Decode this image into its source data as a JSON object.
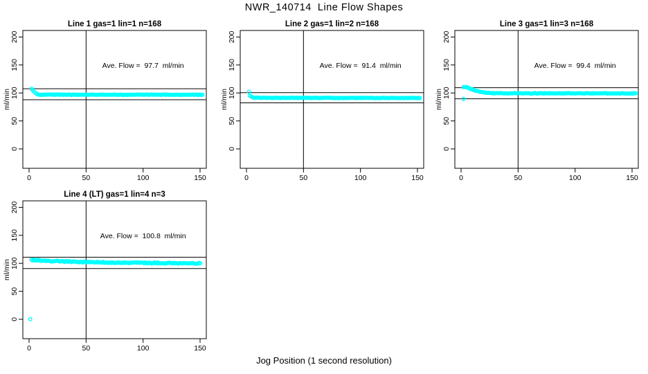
{
  "figure_title": "NWR_140714  Line Flow Shapes",
  "x_axis_label": "Jog Position (1 second resolution)",
  "colors": {
    "marker": "#00FFFF",
    "axis": "#000000",
    "background": "#FFFFFF",
    "text": "#000000"
  },
  "chart_data": {
    "type": "scatter",
    "title": "NWR_140714  Line Flow Shapes",
    "xlabel": "Jog Position (1 second resolution)",
    "ylabel": "ml/min",
    "xticks": [
      0,
      50,
      100,
      150
    ],
    "yticks": [
      0,
      50,
      100,
      150,
      200
    ],
    "xlim": [
      -6,
      156
    ],
    "ylim": [
      -34,
      210
    ],
    "grid": false,
    "legend": "none",
    "marker": "open-circle",
    "annotation_position": {
      "x": 100,
      "y": 150
    },
    "panels": [
      {
        "title": "Line 1 gas=1 lin=1 n=168",
        "annotation": "Ave. Flow =  97.7  ml/min",
        "ave_flow_ml_min": 97.7,
        "gas": 1,
        "lin": 1,
        "n": 168,
        "vline_x": 50,
        "ref_lines": [
          107.5,
          87.9
        ],
        "x_range": [
          2,
          152
        ],
        "trend_keypoints": [
          [
            2,
            107.2
          ],
          [
            3,
            105.8
          ],
          [
            4,
            103.2
          ],
          [
            5,
            101.0
          ],
          [
            6,
            99.4
          ],
          [
            7,
            98.2
          ],
          [
            8,
            97.4
          ],
          [
            9,
            97.0
          ],
          [
            10,
            96.9
          ],
          [
            20,
            96.9
          ],
          [
            152,
            96.8
          ]
        ],
        "jitter": 0.45,
        "extra_points": []
      },
      {
        "title": "Line 2 gas=1 lin=2 n=168",
        "annotation": "Ave. Flow =  91.4  ml/min",
        "ave_flow_ml_min": 91.4,
        "gas": 1,
        "lin": 2,
        "n": 168,
        "vline_x": 50,
        "ref_lines": [
          100.5,
          82.3
        ],
        "x_range": [
          3,
          152
        ],
        "trend_keypoints": [
          [
            3,
            95.2
          ],
          [
            4,
            93.6
          ],
          [
            5,
            92.6
          ],
          [
            6,
            92.0
          ],
          [
            7,
            91.7
          ],
          [
            8,
            91.5
          ],
          [
            10,
            91.3
          ],
          [
            20,
            91.2
          ],
          [
            152,
            91.0
          ]
        ],
        "jitter": 0.4,
        "extra_points": [
          [
            2,
            102
          ]
        ]
      },
      {
        "title": "Line 3 gas=1 lin=3 n=168",
        "annotation": "Ave. Flow =  99.4  ml/min",
        "ave_flow_ml_min": 99.4,
        "gas": 1,
        "lin": 3,
        "n": 168,
        "vline_x": 50,
        "ref_lines": [
          109.3,
          89.5
        ],
        "x_range": [
          2,
          153
        ],
        "trend_keypoints": [
          [
            2,
            110.5
          ],
          [
            3,
            110.8
          ],
          [
            4,
            110.6
          ],
          [
            5,
            110.2
          ],
          [
            6,
            109.4
          ],
          [
            8,
            107.6
          ],
          [
            10,
            106.0
          ],
          [
            12,
            104.6
          ],
          [
            14,
            103.3
          ],
          [
            16,
            102.3
          ],
          [
            18,
            101.5
          ],
          [
            20,
            100.9
          ],
          [
            24,
            100.1
          ],
          [
            28,
            99.7
          ],
          [
            35,
            99.4
          ],
          [
            153,
            99.2
          ]
        ],
        "jitter": 0.5,
        "extra_points": [
          [
            2,
            89.5
          ]
        ]
      },
      {
        "title": "Line 4 (LT) gas=1 lin=4 n=3",
        "annotation": "Ave. Flow =  100.8  ml/min",
        "ave_flow_ml_min": 100.8,
        "gas": 1,
        "lin": 4,
        "n": 3,
        "vline_x": 50,
        "ref_lines": [
          110.9,
          90.7
        ],
        "x_range": [
          2,
          150
        ],
        "trend_keypoints": [
          [
            2,
            106.2
          ],
          [
            4,
            106.0
          ],
          [
            8,
            105.4
          ],
          [
            15,
            104.6
          ],
          [
            25,
            103.7
          ],
          [
            40,
            102.8
          ],
          [
            60,
            101.9
          ],
          [
            85,
            101.1
          ],
          [
            110,
            100.6
          ],
          [
            130,
            100.3
          ],
          [
            150,
            100.1
          ]
        ],
        "jitter": 1.0,
        "extra_points": [
          [
            1,
            0.3
          ]
        ]
      }
    ]
  }
}
